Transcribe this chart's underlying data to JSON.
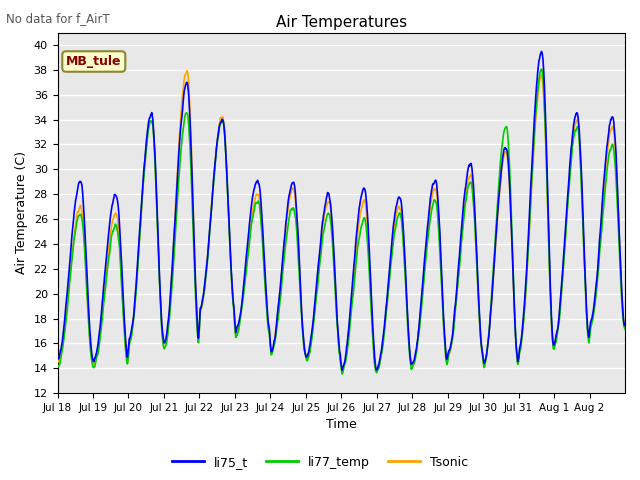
{
  "title": "Air Temperatures",
  "xlabel": "Time",
  "ylabel": "Air Temperature (C)",
  "no_data_text": "No data for f_AirT",
  "annotation_text": "MB_tule",
  "ylim": [
    12,
    41
  ],
  "yticks": [
    12,
    14,
    16,
    18,
    20,
    22,
    24,
    26,
    28,
    30,
    32,
    34,
    36,
    38,
    40
  ],
  "xtick_labels": [
    "Jul 18",
    "Jul 19",
    "Jul 20",
    "Jul 21",
    "Jul 22",
    "Jul 23",
    "Jul 24",
    "Jul 25",
    "Jul 26",
    "Jul 27",
    "Jul 28",
    "Jul 29",
    "Jul 30",
    "Jul 31",
    "Aug 1",
    "Aug 2"
  ],
  "line_colors": [
    "blue",
    "#00cc00",
    "orange"
  ],
  "line_labels": [
    "li75_t",
    "li77_temp",
    "Tsonic"
  ],
  "line_width": 1.2,
  "bg_color": "#e8e8e8",
  "grid_color": "white",
  "daily_mins_blue": [
    14.8,
    14.5,
    16.2,
    16.0,
    18.8,
    16.8,
    15.2,
    14.8,
    13.8,
    14.0,
    14.5,
    15.2,
    14.2,
    15.5,
    16.2,
    17.5
  ],
  "daily_maxs_blue": [
    29.0,
    28.0,
    34.5,
    37.0,
    34.0,
    29.2,
    29.0,
    28.0,
    28.5,
    27.8,
    29.2,
    30.5,
    31.8,
    39.5,
    34.5,
    34.2
  ],
  "daily_mins_green": [
    14.2,
    14.0,
    15.8,
    15.5,
    18.5,
    16.5,
    15.0,
    14.5,
    13.5,
    13.8,
    14.2,
    15.0,
    14.0,
    15.2,
    15.8,
    17.2
  ],
  "daily_maxs_green": [
    26.5,
    25.5,
    34.0,
    34.5,
    34.0,
    27.5,
    27.0,
    26.5,
    26.0,
    26.5,
    27.5,
    29.0,
    33.5,
    38.0,
    33.5,
    32.0
  ],
  "daily_mins_orange": [
    14.5,
    14.2,
    16.0,
    15.8,
    18.6,
    16.6,
    15.1,
    14.6,
    13.6,
    13.9,
    14.3,
    15.1,
    14.1,
    15.3,
    16.0,
    17.3
  ],
  "daily_maxs_orange": [
    27.0,
    26.5,
    34.0,
    38.0,
    34.2,
    28.0,
    28.5,
    27.5,
    27.5,
    27.0,
    28.5,
    29.5,
    31.5,
    37.5,
    34.0,
    33.5
  ],
  "peak_phase": 0.65,
  "pts_per_day": 96
}
